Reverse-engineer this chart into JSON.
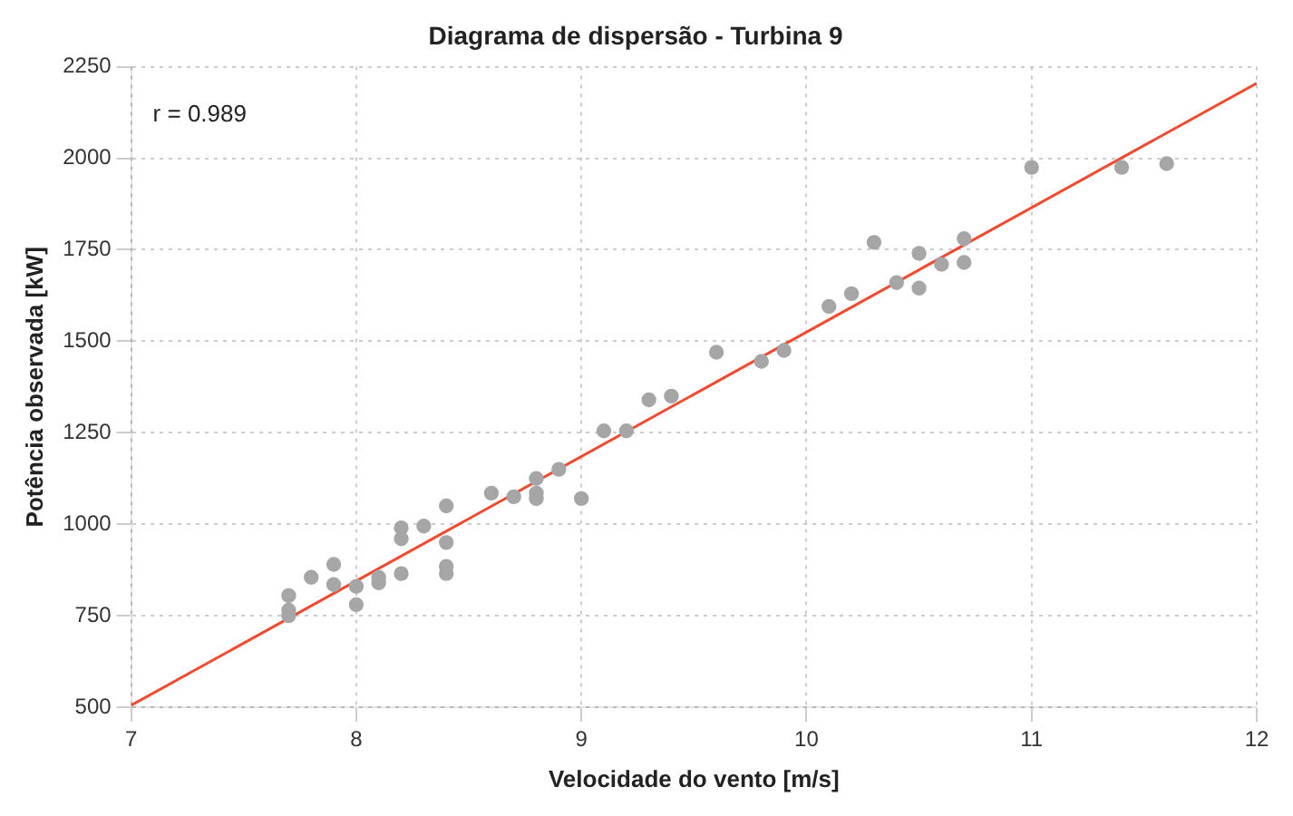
{
  "chart_data": {
    "type": "scatter",
    "title": "Diagrama de dispersão - Turbina 9",
    "xlabel": "Velocidade do vento [m/s]",
    "ylabel": "Potência observada [kW]",
    "annotations": [
      "r = 0.989"
    ],
    "xlim": [
      7,
      12
    ],
    "xticks": [
      7,
      8,
      9,
      10,
      11,
      12
    ],
    "ylim": [
      500,
      2250
    ],
    "yticks": [
      500,
      750,
      1000,
      1250,
      1500,
      1750,
      2000,
      2250
    ],
    "grid": true,
    "marker": "circle",
    "series": [
      {
        "type": "scatter",
        "color": "#a6a6a6",
        "x": [
          7.7,
          7.7,
          7.7,
          7.8,
          7.9,
          7.9,
          8.0,
          8.0,
          8.1,
          8.1,
          8.2,
          8.2,
          8.2,
          8.3,
          8.4,
          8.4,
          8.4,
          8.4,
          8.6,
          8.7,
          8.8,
          8.8,
          8.8,
          8.9,
          9.0,
          9.1,
          9.2,
          9.3,
          9.4,
          9.6,
          9.8,
          9.9,
          10.1,
          10.2,
          10.3,
          10.4,
          10.5,
          10.5,
          10.6,
          10.7,
          10.7,
          11.0,
          11.4,
          11.6
        ],
        "values": [
          805,
          765,
          750,
          855,
          890,
          835,
          830,
          780,
          855,
          840,
          990,
          960,
          865,
          995,
          1050,
          950,
          885,
          865,
          1085,
          1075,
          1125,
          1085,
          1070,
          1150,
          1070,
          1255,
          1255,
          1340,
          1350,
          1470,
          1445,
          1475,
          1595,
          1630,
          1770,
          1660,
          1740,
          1645,
          1710,
          1780,
          1715,
          1975,
          1975,
          1985
        ]
      },
      {
        "type": "line",
        "color": "#f04a30",
        "line_style": "solid",
        "marker": "none",
        "x": [
          7,
          12
        ],
        "values": [
          505,
          2205
        ]
      }
    ]
  }
}
